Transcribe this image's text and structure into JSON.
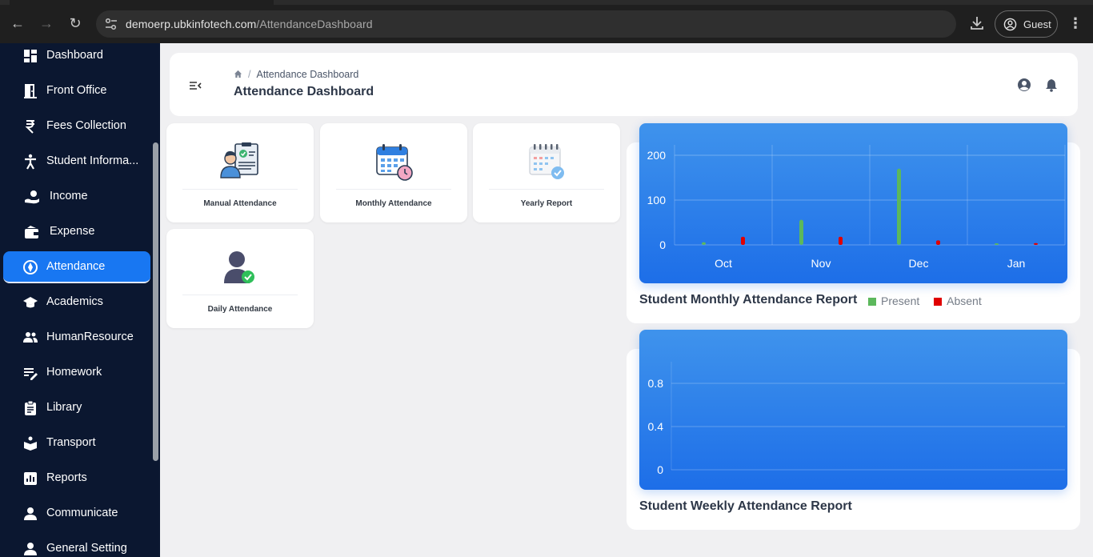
{
  "browser": {
    "url_host": "demoerp.ubkinfotech.com",
    "url_path": "/AttendanceDashboard",
    "guest_label": "Guest"
  },
  "sidebar": {
    "items": [
      {
        "label": "Dashboard",
        "icon": "dashboard-icon"
      },
      {
        "label": "Front Office",
        "icon": "door-icon"
      },
      {
        "label": "Fees Collection",
        "icon": "rupee-icon"
      },
      {
        "label": "Student Informa...",
        "icon": "person-icon"
      },
      {
        "label": "Income",
        "icon": "hand-coin-icon"
      },
      {
        "label": "Expense",
        "icon": "wallet-icon"
      },
      {
        "label": "Attendance",
        "icon": "attendance-icon"
      },
      {
        "label": "Academics",
        "icon": "graduation-cap-icon"
      },
      {
        "label": "HumanResource",
        "icon": "people-icon"
      },
      {
        "label": "Homework",
        "icon": "notes-icon"
      },
      {
        "label": "Library",
        "icon": "clipboard-icon"
      },
      {
        "label": "Transport",
        "icon": "transport-icon"
      },
      {
        "label": "Reports",
        "icon": "bar-chart-icon"
      },
      {
        "label": "Communicate",
        "icon": "user-icon"
      },
      {
        "label": "General Setting",
        "icon": "user-icon"
      }
    ]
  },
  "header": {
    "breadcrumb": "Attendance Dashboard",
    "title": "Attendance Dashboard"
  },
  "tiles": [
    {
      "label": "Manual Attendance",
      "icon": "manual-attendance-icon"
    },
    {
      "label": "Monthly Attendance",
      "icon": "monthly-calendar-icon"
    },
    {
      "label": "Yearly Report",
      "icon": "yearly-calendar-icon"
    },
    {
      "label": "Daily Attendance",
      "icon": "daily-attendance-icon"
    }
  ],
  "charts": {
    "monthly_title": "Student Monthly Attendance Report",
    "weekly_title": "Student Weekly Attendance Report",
    "legend_present": "Present",
    "legend_absent": "Absent",
    "present_color": "#5cb85c",
    "absent_color": "#e00000"
  },
  "chart_data": [
    {
      "type": "bar",
      "title": "Student Monthly Attendance Report",
      "categories": [
        "Oct",
        "Nov",
        "Dec",
        "Jan"
      ],
      "series": [
        {
          "name": "Present",
          "values": [
            6,
            56,
            170,
            2
          ]
        },
        {
          "name": "Absent",
          "values": [
            18,
            18,
            10,
            4
          ]
        }
      ],
      "yticks": [
        0,
        100,
        200
      ],
      "ylim": [
        0,
        220
      ],
      "grid": true,
      "legend": "bottom"
    },
    {
      "type": "bar",
      "title": "Student Weekly Attendance Report",
      "categories": [],
      "series": [],
      "yticks": [
        0,
        0.4,
        0.8
      ],
      "ylim": [
        0,
        1
      ],
      "grid": true
    }
  ]
}
